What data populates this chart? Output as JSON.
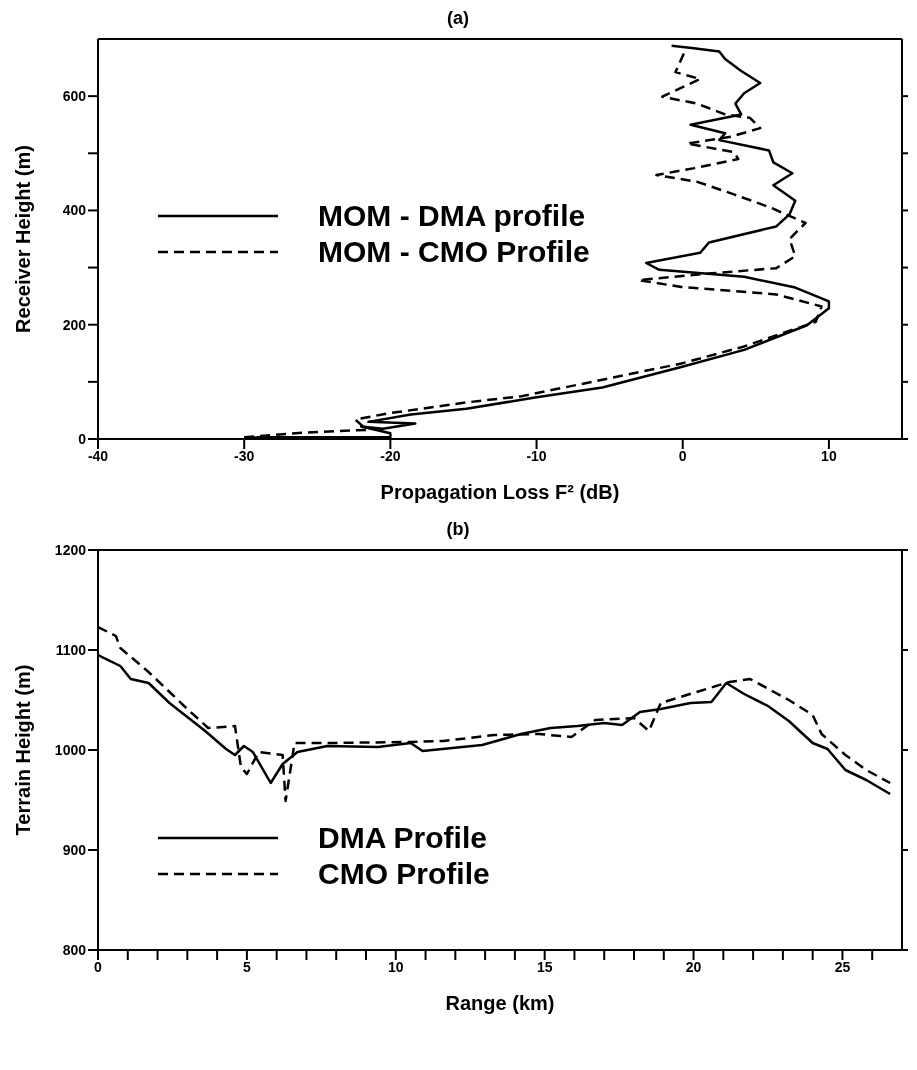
{
  "chart_data": [
    {
      "type": "line",
      "title": "(a)",
      "xlabel": "Propagation Loss F² (dB)",
      "ylabel": "Receiver Height (m)",
      "xlim": [
        -40,
        15
      ],
      "xticks": [
        -40,
        -30,
        -20,
        -10,
        0,
        10
      ],
      "ylim": [
        0,
        700
      ],
      "yticks": [
        0,
        {
          "value": 100,
          "label": null
        },
        200,
        {
          "value": 300,
          "label": null
        },
        400,
        {
          "value": 500,
          "label": null
        },
        600
      ],
      "legend": "center left",
      "marker": "none",
      "series": [
        {
          "name": "MOM - DMA profile",
          "color": "#000000",
          "line_style": "solid",
          "x": [
            -30,
            -29,
            -20,
            -20,
            -22,
            -20.5,
            -18.3,
            -21.5,
            -18.6,
            -14.8,
            -10,
            -5.5,
            -0.1,
            4.2,
            8.5,
            10,
            10,
            7.7,
            4.2,
            -1.6,
            -2.5,
            1.2,
            1.8,
            6.4,
            7.3,
            7.7,
            6.2,
            7.5,
            6.2,
            5.9,
            2.5,
            2.9,
            0.54,
            4,
            3.6,
            4.2,
            5.3,
            4,
            2.9,
            2.5,
            0.76,
            -0.76
          ],
          "values": [
            0,
            3,
            3,
            10,
            22,
            18,
            27,
            30,
            43,
            53,
            73,
            90,
            126,
            156,
            199,
            229,
            241,
            265,
            284,
            296,
            308,
            326,
            344,
            372,
            393,
            417,
            444,
            465,
            484,
            505,
            523,
            535,
            550,
            568,
            587,
            605,
            623,
            644,
            665,
            678,
            684,
            688
          ]
        },
        {
          "name": "MOM - CMO Profile",
          "color": "#000000",
          "line_style": "dashed",
          "x": [
            -30,
            -26,
            -21.6,
            -22.4,
            -20.1,
            -14.8,
            -11,
            -0.1,
            4.2,
            9.1,
            9.5,
            6.4,
            -0.1,
            -3,
            2,
            6.4,
            7.7,
            7.3,
            8.4,
            6,
            3.4,
            1,
            -1.8,
            0.8,
            3.8,
            3.5,
            0.3,
            3.3,
            5.3,
            4.6,
            2.9,
            0.97,
            -1.4,
            1.2,
            -0.5,
            0.1
          ],
          "values": [
            3,
            11,
            16,
            34,
            45,
            64,
            75,
            132,
            162,
            205,
            232,
            253,
            266,
            278,
            290,
            299,
            320,
            350,
            378,
            405,
            429,
            450,
            462,
            474,
            490,
            502,
            517,
            529,
            544,
            562,
            568,
            587,
            599,
            630,
            642,
            676
          ]
        }
      ]
    },
    {
      "type": "line",
      "title": "(b)",
      "xlabel": "Range (km)",
      "ylabel": "Terrain Height (m)",
      "xlim": [
        0,
        27
      ],
      "xticks": [
        0,
        {
          "value": 1,
          "label": null
        },
        {
          "value": 2,
          "label": null
        },
        {
          "value": 3,
          "label": null
        },
        {
          "value": 4,
          "label": null
        },
        5,
        {
          "value": 6,
          "label": null
        },
        {
          "value": 7,
          "label": null
        },
        {
          "value": 8,
          "label": null
        },
        {
          "value": 9,
          "label": null
        },
        10,
        {
          "value": 11,
          "label": null
        },
        {
          "value": 12,
          "label": null
        },
        {
          "value": 13,
          "label": null
        },
        {
          "value": 14,
          "label": null
        },
        15,
        {
          "value": 16,
          "label": null
        },
        {
          "value": 17,
          "label": null
        },
        {
          "value": 18,
          "label": null
        },
        {
          "value": 19,
          "label": null
        },
        20,
        {
          "value": 21,
          "label": null
        },
        {
          "value": 22,
          "label": null
        },
        {
          "value": 23,
          "label": null
        },
        {
          "value": 24,
          "label": null
        },
        25,
        {
          "value": 26,
          "label": null
        }
      ],
      "ylim": [
        800,
        1200
      ],
      "yticks": [
        800,
        900,
        1000,
        1100,
        1200
      ],
      "legend": "bottom left",
      "marker": "none",
      "series": [
        {
          "name": "DMA Profile",
          "color": "#000000",
          "line_style": "solid",
          "x": [
            0,
            0.75,
            1.1,
            1.7,
            2.4,
            3.6,
            4.3,
            4.6,
            4.9,
            5.2,
            5.8,
            6.2,
            6.7,
            7.7,
            9.4,
            10.5,
            10.9,
            12.9,
            14.2,
            15.2,
            16.1,
            17,
            17.6,
            18.2,
            18.9,
            19.9,
            20.6,
            21.1,
            21.7,
            22.5,
            23.2,
            24,
            24.5,
            25.1,
            25.8,
            26.6
          ],
          "values": [
            1095,
            1084,
            1071,
            1067,
            1047,
            1019,
            1001,
            995,
            1004,
            998,
            967,
            986,
            998,
            1004,
            1003,
            1007,
            999,
            1005,
            1016,
            1022,
            1024,
            1027,
            1025,
            1038,
            1041,
            1047,
            1048,
            1067,
            1056,
            1044,
            1029,
            1007,
            1001,
            980,
            970,
            956
          ]
        },
        {
          "name": "CMO Profile",
          "color": "#000000",
          "line_style": "dashed",
          "x": [
            0,
            0.6,
            0.75,
            1.7,
            3,
            3.7,
            4.6,
            4.8,
            5,
            5.4,
            6.2,
            6.3,
            6.6,
            7.7,
            10.5,
            11.6,
            13.3,
            14.8,
            15.9,
            16.7,
            18,
            18.5,
            18.9,
            21.2,
            21.9,
            23.2,
            24,
            24.3,
            25.1,
            25.8,
            26.6
          ],
          "values": [
            1123,
            1114,
            1102,
            1078,
            1041,
            1022,
            1024,
            983,
            976,
            998,
            995,
            949,
            1007,
            1007,
            1008,
            1009,
            1015,
            1016,
            1013,
            1030,
            1032,
            1019,
            1047,
            1068,
            1071,
            1050,
            1035,
            1016,
            995,
            980,
            967
          ]
        }
      ]
    }
  ]
}
